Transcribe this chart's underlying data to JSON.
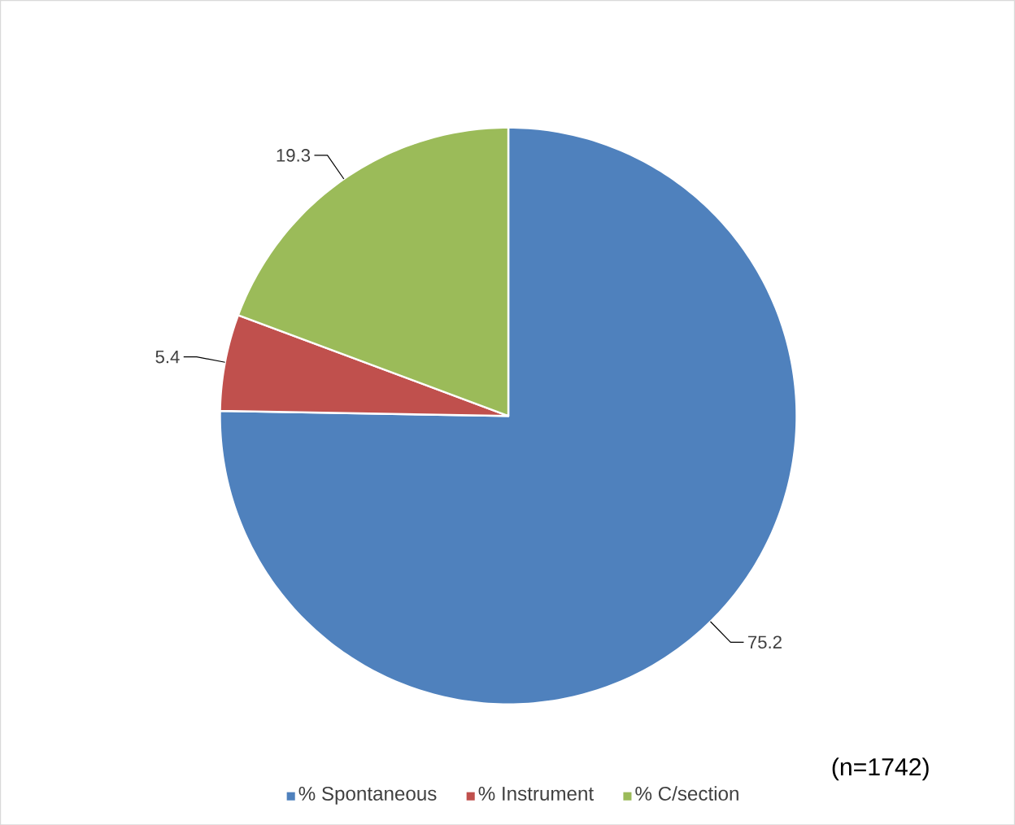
{
  "chart_data": {
    "type": "pie",
    "categories": [
      "% Spontaneous",
      "% Instrument",
      "% C/section"
    ],
    "values": [
      75.2,
      5.4,
      19.3
    ],
    "colors": [
      "#4f81bd",
      "#c0504d",
      "#9bbb59"
    ],
    "data_labels": true,
    "legend": "bottom",
    "annotations": [
      "(n=1742)"
    ]
  }
}
